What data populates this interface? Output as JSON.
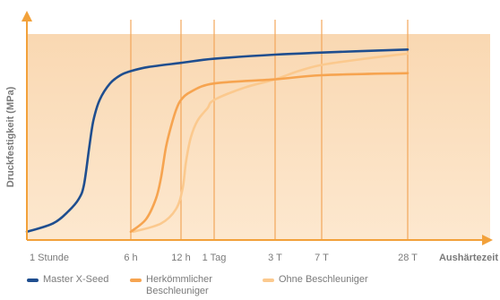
{
  "chart_data": {
    "type": "line",
    "title": "",
    "xlabel": "Aushärtezeit",
    "ylabel": "Druckfestigkeit (MPa)",
    "x_ticks": [
      "1 Stunde",
      "6 h",
      "12 h",
      "1 Tag",
      "3 T",
      "7 T",
      "28 T"
    ],
    "colors": {
      "background": "#fde8cf",
      "background_top": "#f9d8b2",
      "grid": "#f2a65a",
      "axis": "#f2a13a",
      "label": "#7a7a7a"
    },
    "series": [
      {
        "name": "Master X-Seed",
        "color": "#1f4e8f",
        "points": [
          [
            0.0,
            0.04
          ],
          [
            0.25,
            0.08
          ],
          [
            0.4,
            0.14
          ],
          [
            0.5,
            0.2
          ],
          [
            0.55,
            0.27
          ],
          [
            0.6,
            0.45
          ],
          [
            0.64,
            0.58
          ],
          [
            0.7,
            0.68
          ],
          [
            0.8,
            0.76
          ],
          [
            0.9,
            0.8
          ],
          [
            1.0,
            0.82
          ],
          [
            1.35,
            0.84
          ],
          [
            2.0,
            0.86
          ],
          [
            3.0,
            0.88
          ],
          [
            4.0,
            0.9
          ],
          [
            5.0,
            0.91
          ],
          [
            6.0,
            0.925
          ]
        ]
      },
      {
        "name": "Herkömmlicher Beschleuniger",
        "color": "#f6a450",
        "points": [
          [
            1.0,
            0.04
          ],
          [
            1.3,
            0.1
          ],
          [
            1.5,
            0.2
          ],
          [
            1.6,
            0.3
          ],
          [
            1.7,
            0.45
          ],
          [
            1.8,
            0.55
          ],
          [
            1.9,
            0.63
          ],
          [
            2.0,
            0.68
          ],
          [
            2.3,
            0.72
          ],
          [
            3.0,
            0.76
          ],
          [
            4.0,
            0.78
          ],
          [
            5.0,
            0.8
          ],
          [
            6.0,
            0.81
          ]
        ]
      },
      {
        "name": "Ohne Beschleuniger",
        "color": "#fbc98e",
        "points": [
          [
            1.05,
            0.04
          ],
          [
            1.6,
            0.08
          ],
          [
            1.9,
            0.15
          ],
          [
            2.05,
            0.25
          ],
          [
            2.15,
            0.38
          ],
          [
            2.3,
            0.5
          ],
          [
            2.5,
            0.58
          ],
          [
            2.8,
            0.64
          ],
          [
            3.0,
            0.68
          ],
          [
            3.5,
            0.74
          ],
          [
            4.0,
            0.78
          ],
          [
            4.5,
            0.82
          ],
          [
            5.0,
            0.85
          ],
          [
            5.5,
            0.88
          ],
          [
            6.0,
            0.905
          ]
        ]
      }
    ],
    "grid": true,
    "legend_position": "bottom-left"
  }
}
